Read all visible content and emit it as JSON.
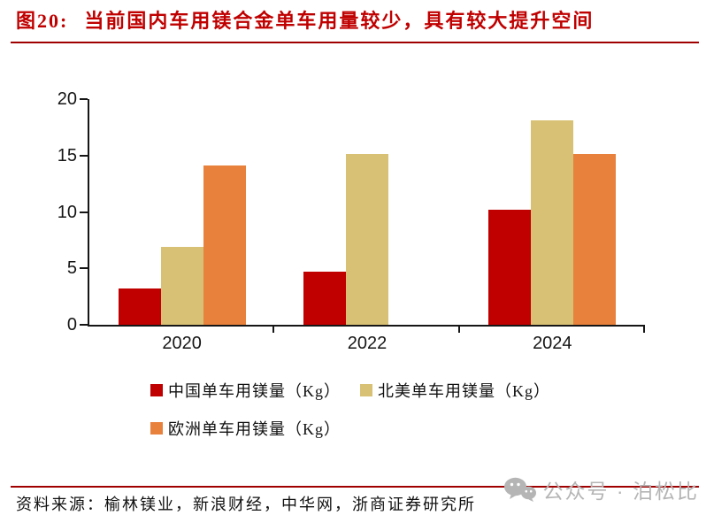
{
  "figure": {
    "label": "图20:",
    "title": "当前国内车用镁合金单车用量较少，具有较大提升空间"
  },
  "chart_data": {
    "type": "bar",
    "categories": [
      "2020",
      "2022",
      "2024"
    ],
    "series": [
      {
        "name": "中国单车用镁量（Kg）",
        "color": "#c00000",
        "values": [
          3.2,
          4.7,
          10.2
        ]
      },
      {
        "name": "北美单车用镁量（Kg）",
        "color": "#d8c174",
        "values": [
          6.9,
          15.1,
          18.1
        ]
      },
      {
        "name": "欧洲单车用镁量（Kg）",
        "color": "#e8813c",
        "values": [
          14.1,
          null,
          15.1
        ]
      }
    ],
    "title": "",
    "xlabel": "",
    "ylabel": "",
    "ylim": [
      0,
      20
    ],
    "yticks": [
      0,
      5,
      10,
      15,
      20
    ],
    "grid": false,
    "legend_position": "bottom"
  },
  "footer": {
    "source_label": "资料来源：",
    "source_text": "榆林镁业，新浪财经，中华网，浙商证券研究所"
  },
  "watermark": {
    "icon": "wechat-icon",
    "text": "公众号 · 泊松比"
  },
  "colors": {
    "title": "#c00000",
    "rule": "#a00000",
    "axis": "#161616",
    "watermark": "#b5b5b5"
  }
}
